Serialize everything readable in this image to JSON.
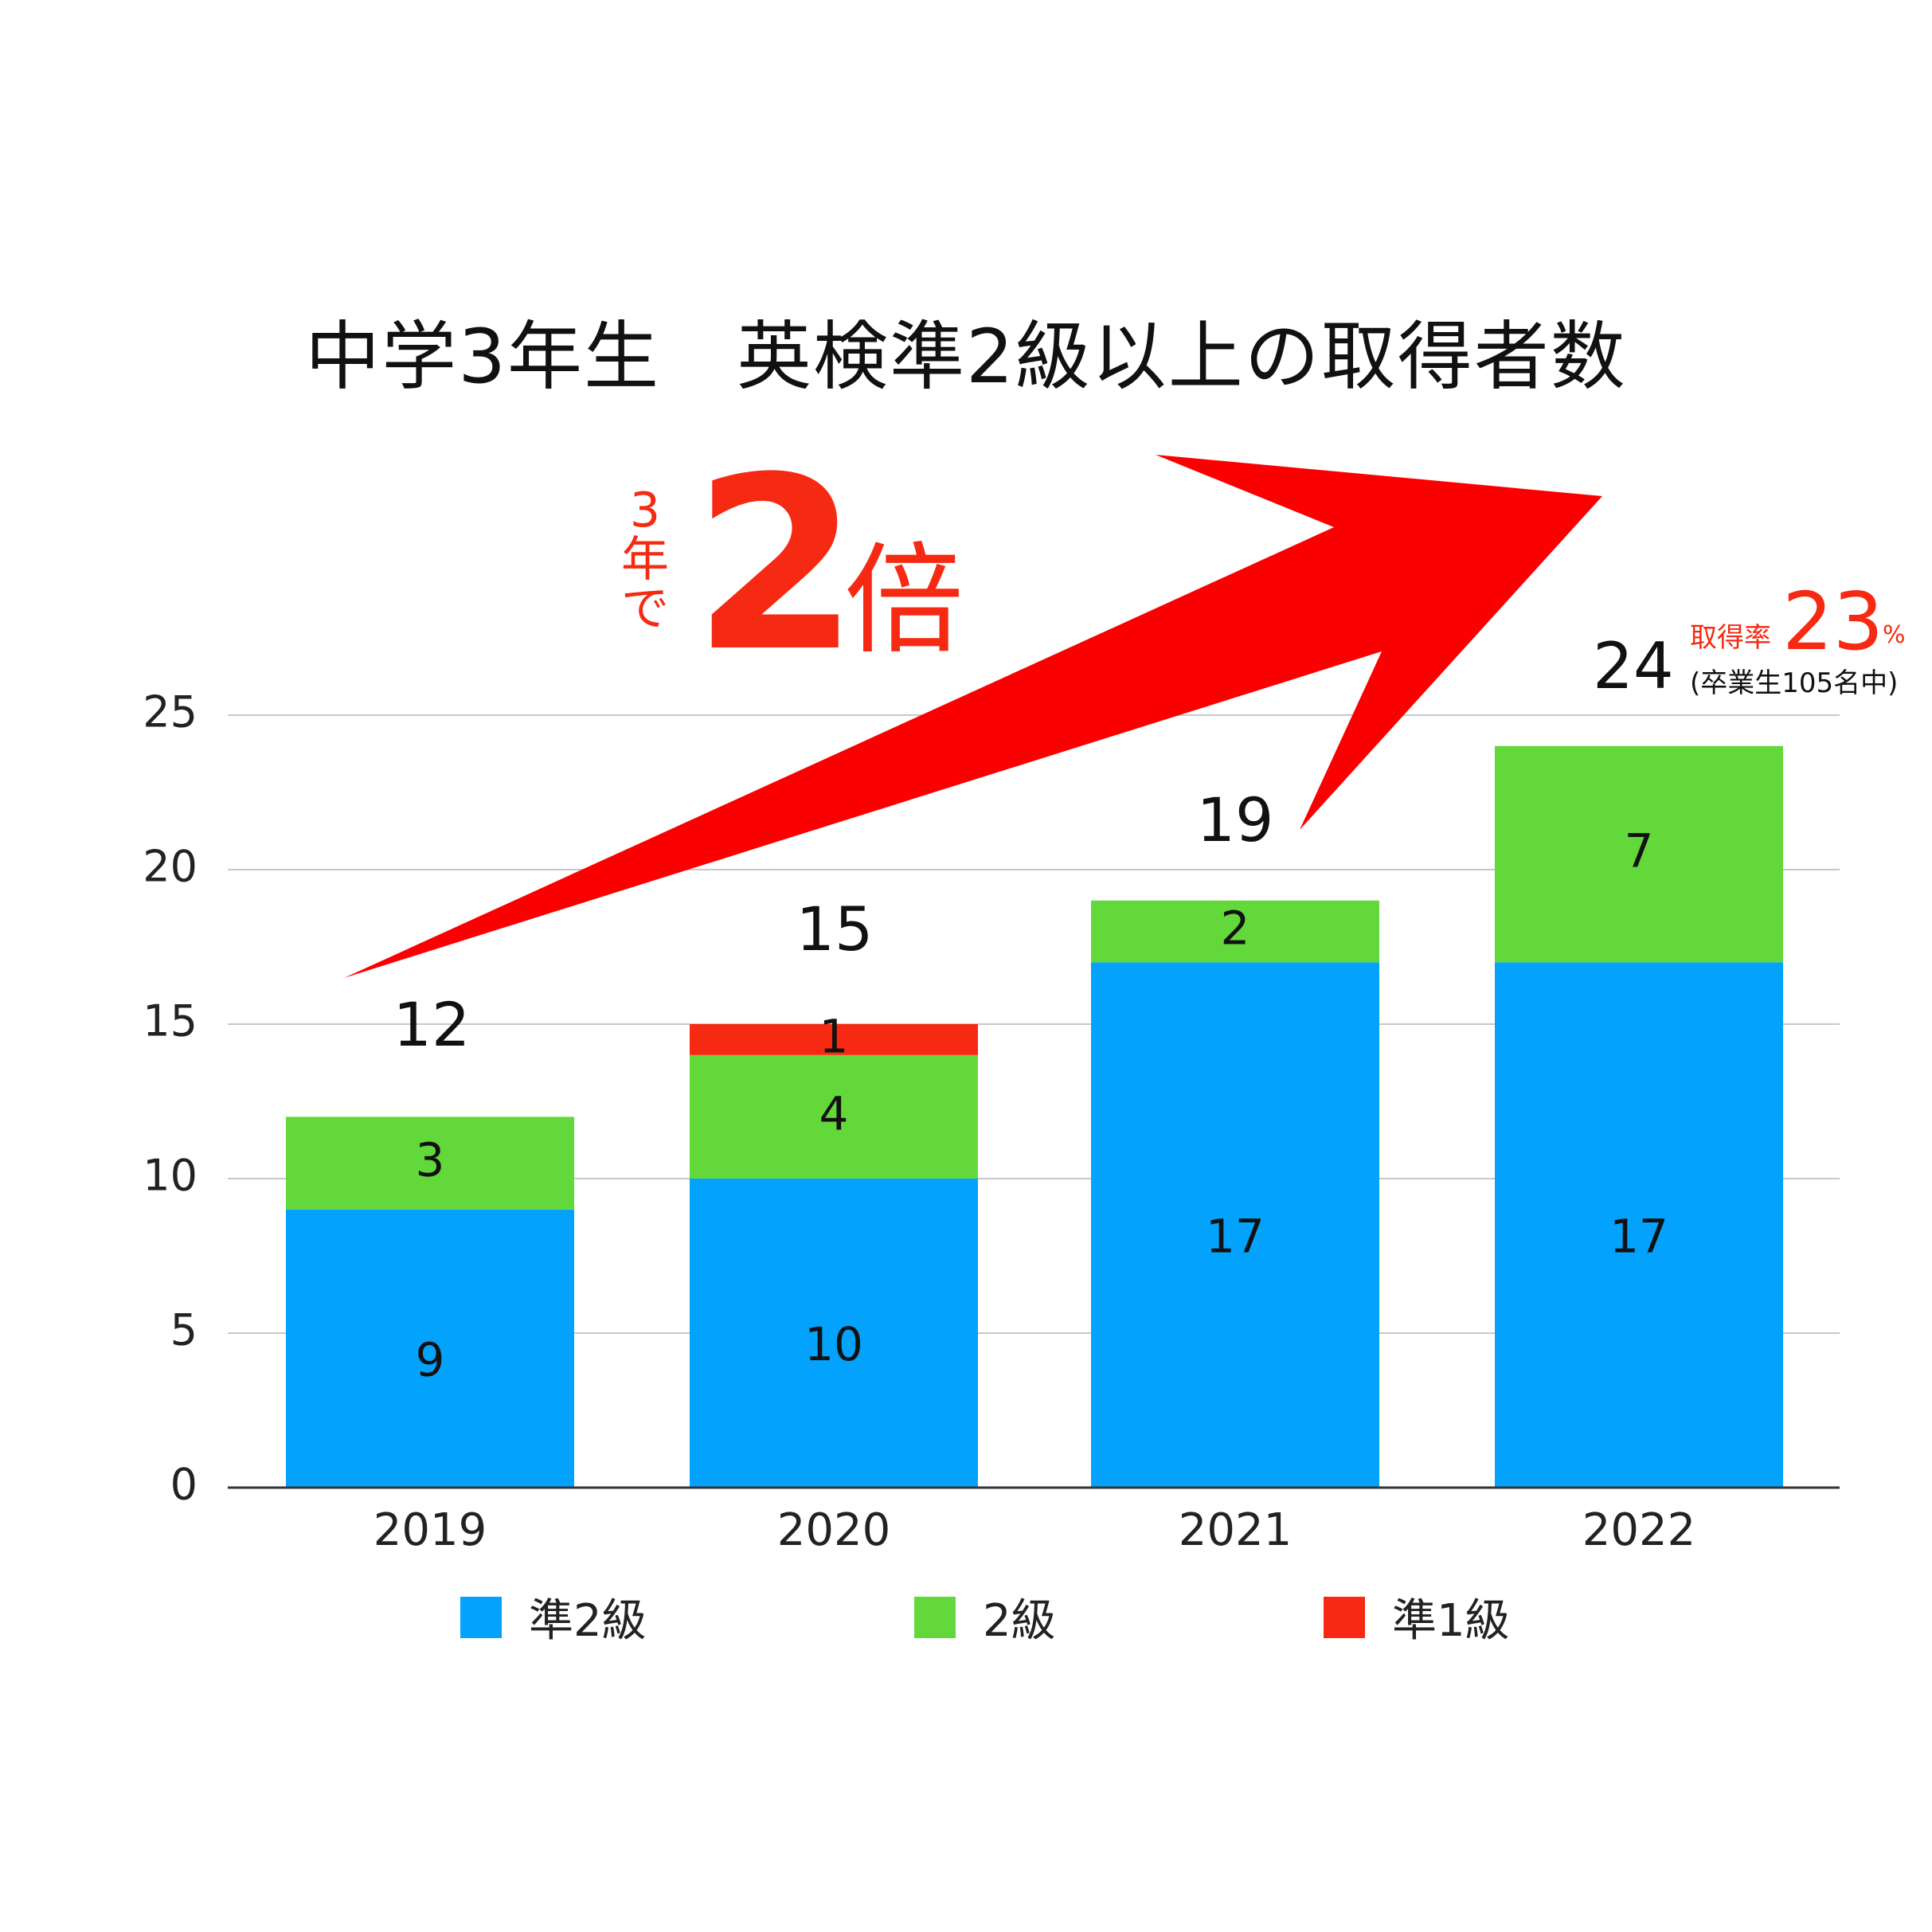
{
  "title": "中学3年生　英検準2級以上の取得者数",
  "promo": {
    "small_lines": [
      "3",
      "年",
      "で"
    ],
    "big": "2",
    "suffix": "倍"
  },
  "annotation": {
    "total": "24",
    "rate_label": "取得率",
    "rate_value": "23",
    "rate_unit": "%",
    "note": "(卒業生105名中)"
  },
  "colors": {
    "jun2": "#03a2fd",
    "kyu2": "#62d83a",
    "jun1": "#f62a12",
    "arrow": "#fb0000",
    "grid": "#c8c8c8",
    "axis": "#333333",
    "promo": "#f62a12"
  },
  "chart_data": {
    "type": "bar",
    "stacked": true,
    "categories": [
      "2019",
      "2020",
      "2021",
      "2022"
    ],
    "series": [
      {
        "name": "準2級",
        "values": [
          9,
          10,
          17,
          17
        ]
      },
      {
        "name": "2級",
        "values": [
          3,
          4,
          2,
          7
        ]
      },
      {
        "name": "準1級",
        "values": [
          0,
          1,
          0,
          0
        ]
      }
    ],
    "totals": [
      12,
      15,
      19,
      24
    ],
    "ylim": [
      0,
      25
    ],
    "yticks": [
      0,
      5,
      10,
      15,
      20,
      25
    ],
    "grid": true,
    "legend": "bottom"
  }
}
